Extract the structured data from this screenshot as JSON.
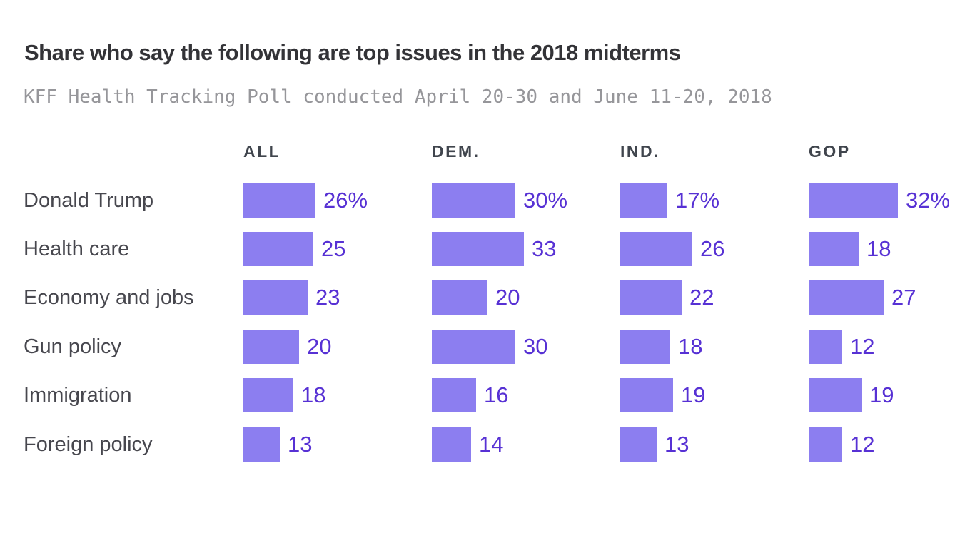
{
  "page": {
    "background": "#ffffff"
  },
  "header": {
    "title": "Share who say the following are top issues in the 2018 midterms",
    "subtitle": "KFF Health Tracking Poll conducted April 20-30 and June 11-20, 2018"
  },
  "chart_data": {
    "type": "bar",
    "orientation": "horizontal",
    "title": "Share who say the following are top issues in the 2018 midterms",
    "subtitle": "KFF Health Tracking Poll conducted April 20-30 and June 11-20, 2018",
    "categories": [
      "Donald Trump",
      "Health care",
      "Economy and jobs",
      "Gun policy",
      "Immigration",
      "Foreign policy"
    ],
    "series": [
      {
        "name": "ALL",
        "values": [
          26,
          25,
          23,
          20,
          18,
          13
        ],
        "labels": [
          "26%",
          "25",
          "23",
          "20",
          "18",
          "13"
        ]
      },
      {
        "name": "DEM.",
        "values": [
          30,
          33,
          20,
          30,
          16,
          14
        ],
        "labels": [
          "30%",
          "33",
          "20",
          "30",
          "16",
          "14"
        ]
      },
      {
        "name": "IND.",
        "values": [
          17,
          26,
          22,
          18,
          19,
          13
        ],
        "labels": [
          "17%",
          "26",
          "22",
          "18",
          "19",
          "13"
        ]
      },
      {
        "name": "GOP",
        "values": [
          32,
          18,
          27,
          12,
          19,
          12
        ],
        "labels": [
          "32%",
          "18",
          "27",
          "12",
          "19",
          "12"
        ]
      }
    ],
    "value_suffix_first_row": "%",
    "axis_hidden": true,
    "grid": false,
    "legend_position": "column-headers",
    "xlim": [
      0,
      35
    ],
    "colors": {
      "bar": "#8c7ef0",
      "value_text": "#5731d4",
      "category_text": "#47474e",
      "header_text": "#40454d",
      "title_text": "#333337",
      "subtitle_text": "#96969a"
    }
  }
}
